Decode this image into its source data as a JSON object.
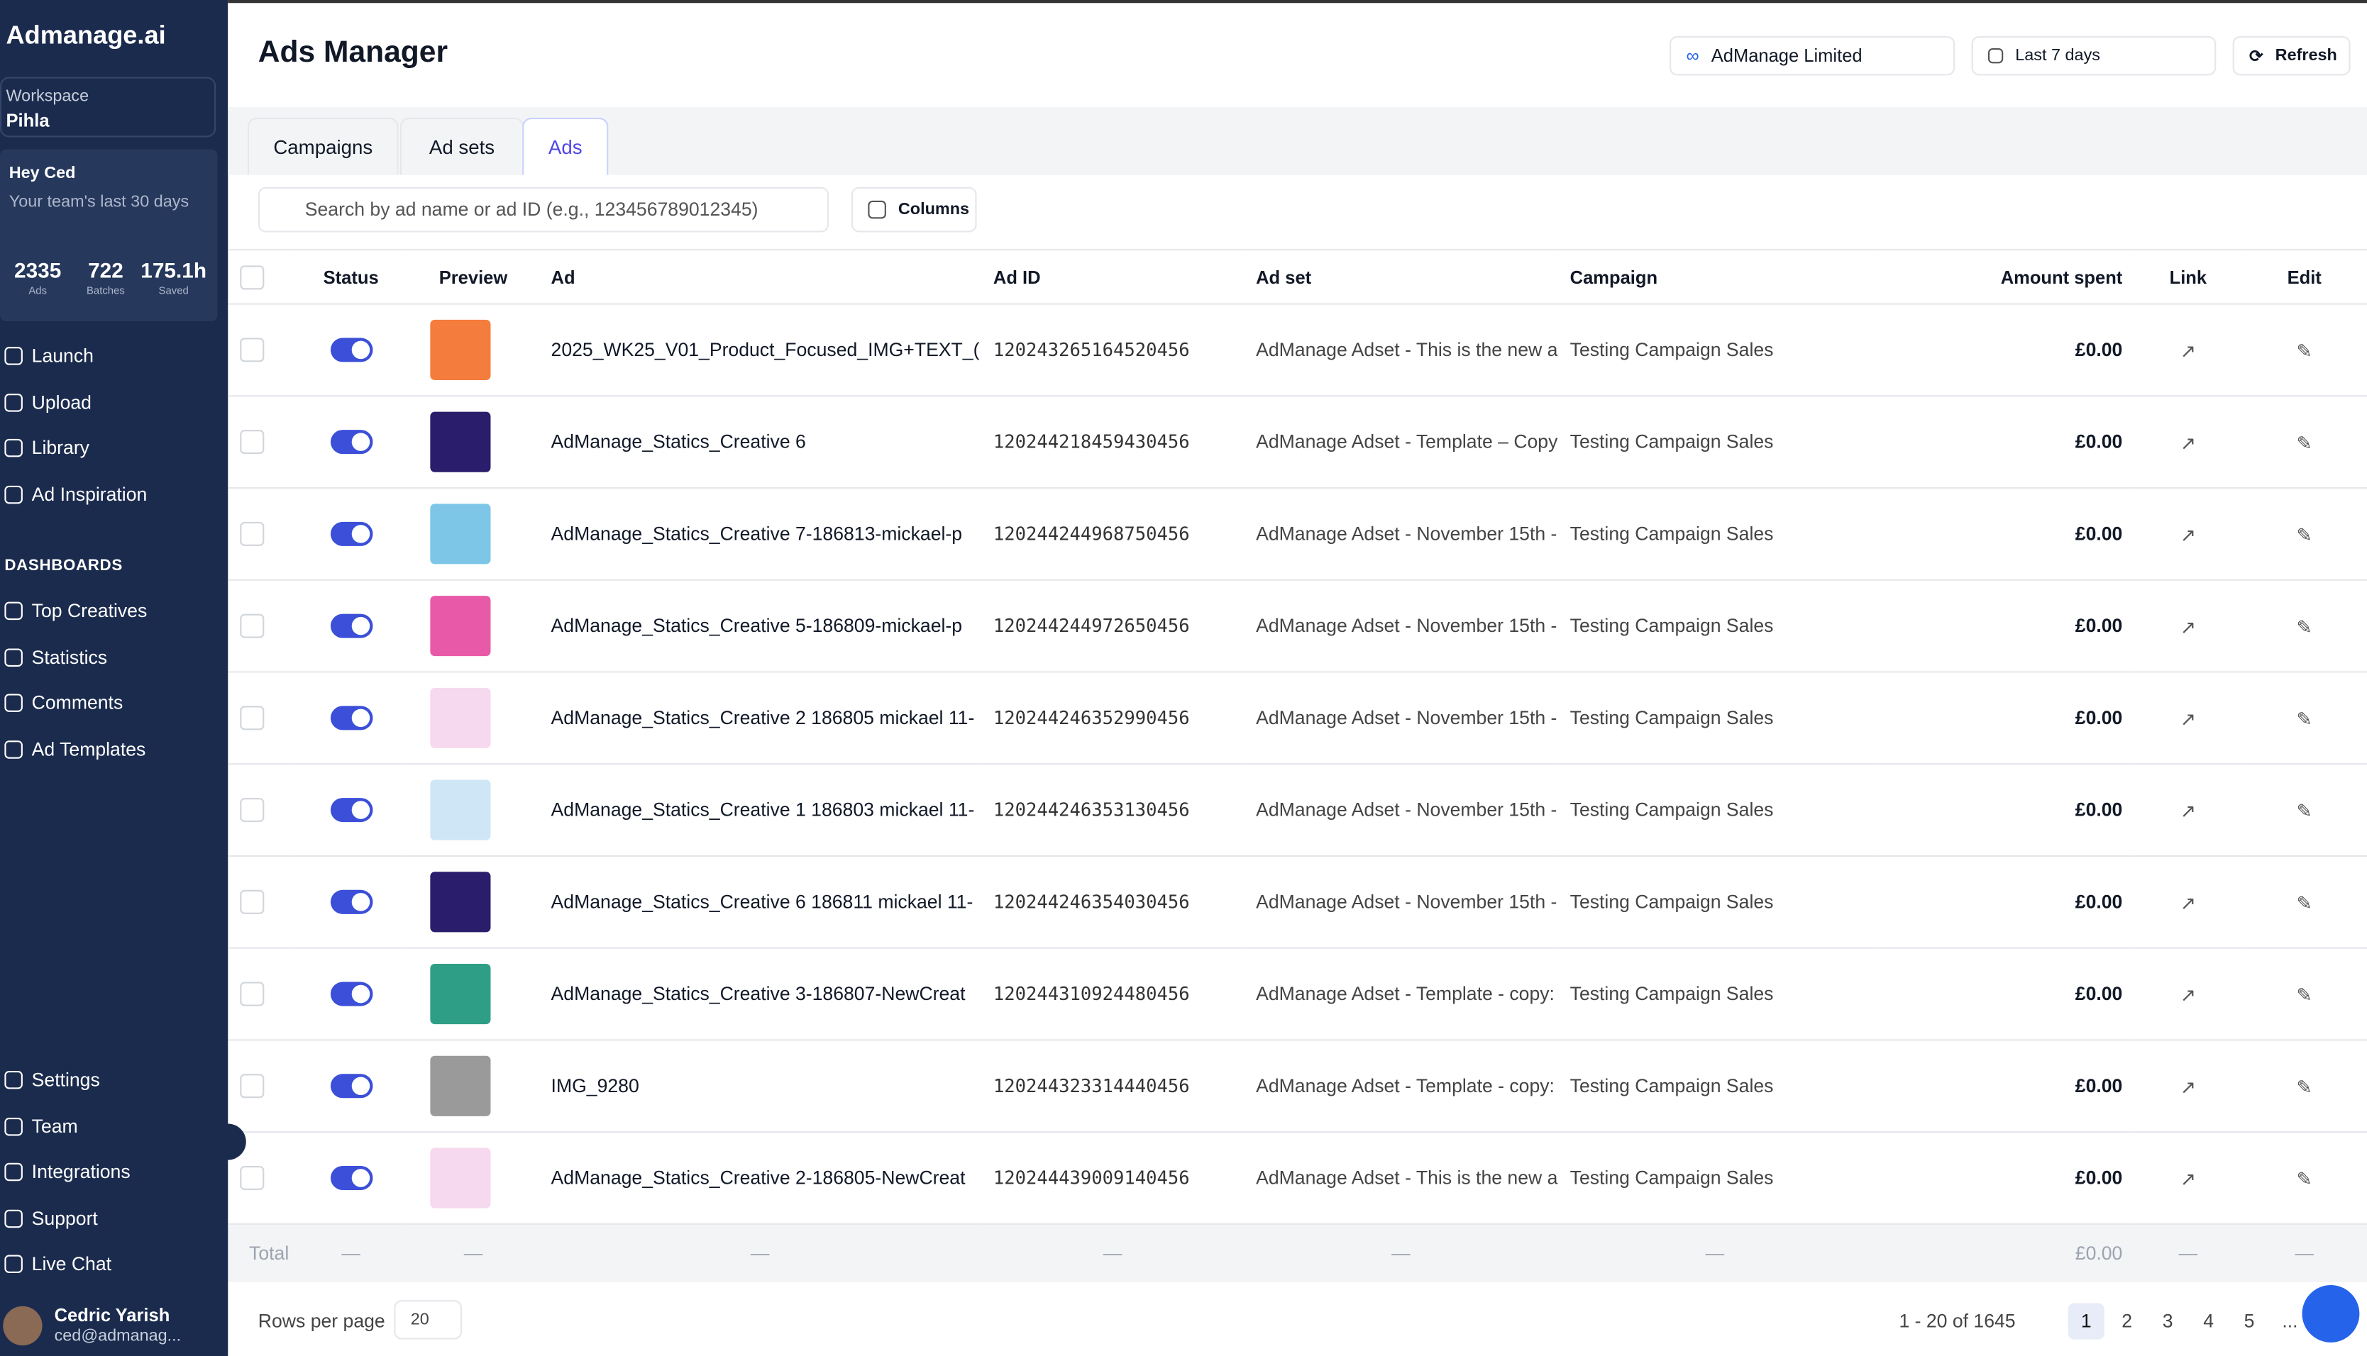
{
  "sidebar": {
    "brand": "Admanage.ai",
    "workspace_label": "Workspace",
    "workspace": "Pihla",
    "greeting": "Hey Ced",
    "greeting_sub": "Your team's last 30 days",
    "stats": [
      {
        "value": "2335",
        "label": "Ads"
      },
      {
        "value": "722",
        "label": "Batches"
      },
      {
        "value": "175.1h",
        "label": "Saved"
      }
    ],
    "nav": [
      "Launch",
      "Upload",
      "Library",
      "Ad Inspiration"
    ],
    "section": "DASHBOARDS",
    "dashboards": [
      "Top Creatives",
      "Statistics",
      "Comments",
      "Ad Templates"
    ],
    "bottom": [
      "Settings",
      "Team",
      "Integrations",
      "Support",
      "Live Chat"
    ],
    "user": {
      "name": "Cedric Yarish",
      "email": "ced@admanag..."
    }
  },
  "header": {
    "title": "Ads Manager",
    "account": "AdManage Limited",
    "date_range": "Last 7 days",
    "refresh": "Refresh"
  },
  "tabs": {
    "items": [
      "Campaigns",
      "Ad sets",
      "Ads"
    ],
    "active": 2
  },
  "toolbar": {
    "search_placeholder": "Search by ad name or ad ID (e.g., 123456789012345)",
    "columns": "Columns"
  },
  "table": {
    "columns": [
      "Status",
      "Preview",
      "Ad",
      "Ad ID",
      "Ad set",
      "Campaign",
      "Amount spent",
      "Link",
      "Edit"
    ],
    "rows": [
      [
        "2025_WK25_V01_Product_Focused_IMG+TEXT_(",
        "120243265164520456",
        "AdManage Adset - This is the new a",
        "Testing Campaign Sales",
        "£0.00"
      ],
      [
        "AdManage_Statics_Creative 6",
        "120244218459430456",
        "AdManage Adset - Template – Copy",
        "Testing Campaign Sales",
        "£0.00"
      ],
      [
        "AdManage_Statics_Creative 7-186813-mickael-p",
        "120244244968750456",
        "AdManage Adset - November 15th -",
        "Testing Campaign Sales",
        "£0.00"
      ],
      [
        "AdManage_Statics_Creative 5-186809-mickael-p",
        "120244244972650456",
        "AdManage Adset - November 15th -",
        "Testing Campaign Sales",
        "£0.00"
      ],
      [
        "AdManage_Statics_Creative 2 186805 mickael 11-",
        "120244246352990456",
        "AdManage Adset - November 15th -",
        "Testing Campaign Sales",
        "£0.00"
      ],
      [
        "AdManage_Statics_Creative 1 186803 mickael 11-",
        "120244246353130456",
        "AdManage Adset - November 15th -",
        "Testing Campaign Sales",
        "£0.00"
      ],
      [
        "AdManage_Statics_Creative 6 186811 mickael 11-",
        "120244246354030456",
        "AdManage Adset - November 15th -",
        "Testing Campaign Sales",
        "£0.00"
      ],
      [
        "AdManage_Statics_Creative 3-186807-NewCreat",
        "120244310924480456",
        "AdManage Adset - Template - copy:",
        "Testing Campaign Sales",
        "£0.00"
      ],
      [
        "IMG_9280",
        "120244323314440456",
        "AdManage Adset - Template - copy:",
        "Testing Campaign Sales",
        "£0.00"
      ],
      [
        "AdManage_Statics_Creative 2-186805-NewCreat",
        "120244439009140456",
        "AdManage Adset - This is the new a",
        "Testing Campaign Sales",
        "£0.00"
      ]
    ],
    "total_label": "Total",
    "totals": [
      "—",
      "—",
      "—",
      "—",
      "—",
      "—",
      "£0.00",
      "—",
      "—"
    ]
  },
  "footer": {
    "rows_per_page_label": "Rows per page",
    "rows_per_page": "20",
    "range": "1 - 20 of 1645",
    "pages": [
      "1",
      "2",
      "3",
      "4",
      "5",
      "..."
    ],
    "current_page": 0
  }
}
